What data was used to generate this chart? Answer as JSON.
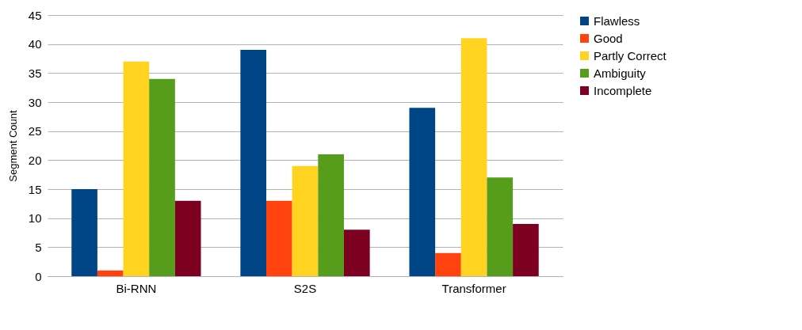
{
  "chart_data": {
    "type": "bar",
    "ylabel": "Segment Count",
    "categories": [
      "Bi-RNN",
      "S2S",
      "Transformer"
    ],
    "series": [
      {
        "name": "Flawless",
        "color": "#004586",
        "values": [
          15,
          39,
          29
        ]
      },
      {
        "name": "Good",
        "color": "#ff420e",
        "values": [
          1,
          13,
          4
        ]
      },
      {
        "name": "Partly Correct",
        "color": "#ffd320",
        "values": [
          37,
          19,
          41
        ]
      },
      {
        "name": "Ambiguity",
        "color": "#579d1c",
        "values": [
          34,
          21,
          17
        ]
      },
      {
        "name": "Incomplete",
        "color": "#7e0021",
        "values": [
          13,
          8,
          9
        ]
      }
    ],
    "ylim": [
      0,
      45
    ],
    "yticks": [
      0,
      5,
      10,
      15,
      20,
      25,
      30,
      35,
      40,
      45
    ],
    "grid": "y",
    "legend": "right"
  }
}
